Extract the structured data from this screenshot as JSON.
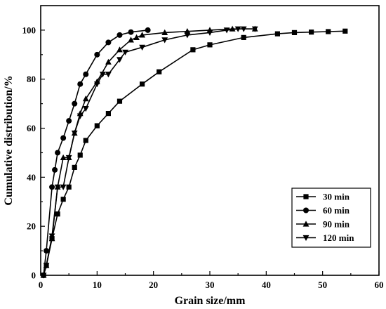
{
  "chart_data": {
    "type": "line",
    "title": "",
    "xlabel": "Grain size/mm",
    "ylabel": "Cumulative distribution/%",
    "xlim": [
      0,
      60
    ],
    "ylim": [
      0,
      110
    ],
    "xticks": [
      0,
      10,
      20,
      30,
      40,
      50,
      60
    ],
    "yticks": [
      0,
      20,
      40,
      60,
      80,
      100
    ],
    "grid": false,
    "legend_position": "bottom-right",
    "series": [
      {
        "name": "30 min",
        "marker": "square",
        "points": [
          [
            0.5,
            0
          ],
          [
            1,
            4
          ],
          [
            2,
            15
          ],
          [
            3,
            25
          ],
          [
            4,
            31
          ],
          [
            5,
            36
          ],
          [
            6,
            44
          ],
          [
            7,
            49
          ],
          [
            8,
            55
          ],
          [
            10,
            61
          ],
          [
            12,
            66
          ],
          [
            14,
            71
          ],
          [
            18,
            78
          ],
          [
            21,
            83
          ],
          [
            27,
            92
          ],
          [
            30,
            94
          ],
          [
            36,
            97
          ],
          [
            42,
            98.5
          ],
          [
            45,
            99
          ],
          [
            48,
            99.2
          ],
          [
            51,
            99.4
          ],
          [
            54,
            99.6
          ]
        ]
      },
      {
        "name": "60 min",
        "marker": "circle",
        "points": [
          [
            0.5,
            0
          ],
          [
            1,
            10
          ],
          [
            2,
            36
          ],
          [
            2.5,
            43
          ],
          [
            3,
            50
          ],
          [
            4,
            56
          ],
          [
            5,
            63
          ],
          [
            6,
            70
          ],
          [
            7,
            78
          ],
          [
            8,
            82
          ],
          [
            10,
            90
          ],
          [
            12,
            95
          ],
          [
            14,
            98
          ],
          [
            16,
            99.2
          ],
          [
            19,
            100
          ]
        ]
      },
      {
        "name": "90 min",
        "marker": "triangle-up",
        "points": [
          [
            0.5,
            0
          ],
          [
            1,
            4
          ],
          [
            2,
            15
          ],
          [
            3,
            36
          ],
          [
            4,
            48
          ],
          [
            5,
            48
          ],
          [
            6,
            58
          ],
          [
            7,
            66
          ],
          [
            8,
            72
          ],
          [
            10,
            79
          ],
          [
            12,
            87
          ],
          [
            14,
            92
          ],
          [
            16,
            96
          ],
          [
            17,
            97
          ],
          [
            18,
            98
          ],
          [
            22,
            99
          ],
          [
            26,
            99.5
          ],
          [
            30,
            100
          ],
          [
            34,
            100.5
          ],
          [
            38,
            100.5
          ]
        ]
      },
      {
        "name": "120 min",
        "marker": "triangle-down",
        "points": [
          [
            0.5,
            0
          ],
          [
            1,
            4
          ],
          [
            2,
            16
          ],
          [
            3,
            36
          ],
          [
            4,
            36
          ],
          [
            5,
            48
          ],
          [
            6,
            58
          ],
          [
            7,
            65
          ],
          [
            8,
            68
          ],
          [
            10,
            78
          ],
          [
            11,
            82
          ],
          [
            12,
            82
          ],
          [
            14,
            88
          ],
          [
            15,
            91
          ],
          [
            18,
            93
          ],
          [
            22,
            96
          ],
          [
            26,
            98
          ],
          [
            30,
            99
          ],
          [
            33,
            100
          ],
          [
            35,
            100.5
          ],
          [
            36,
            100.5
          ],
          [
            38,
            100.5
          ]
        ]
      }
    ]
  }
}
